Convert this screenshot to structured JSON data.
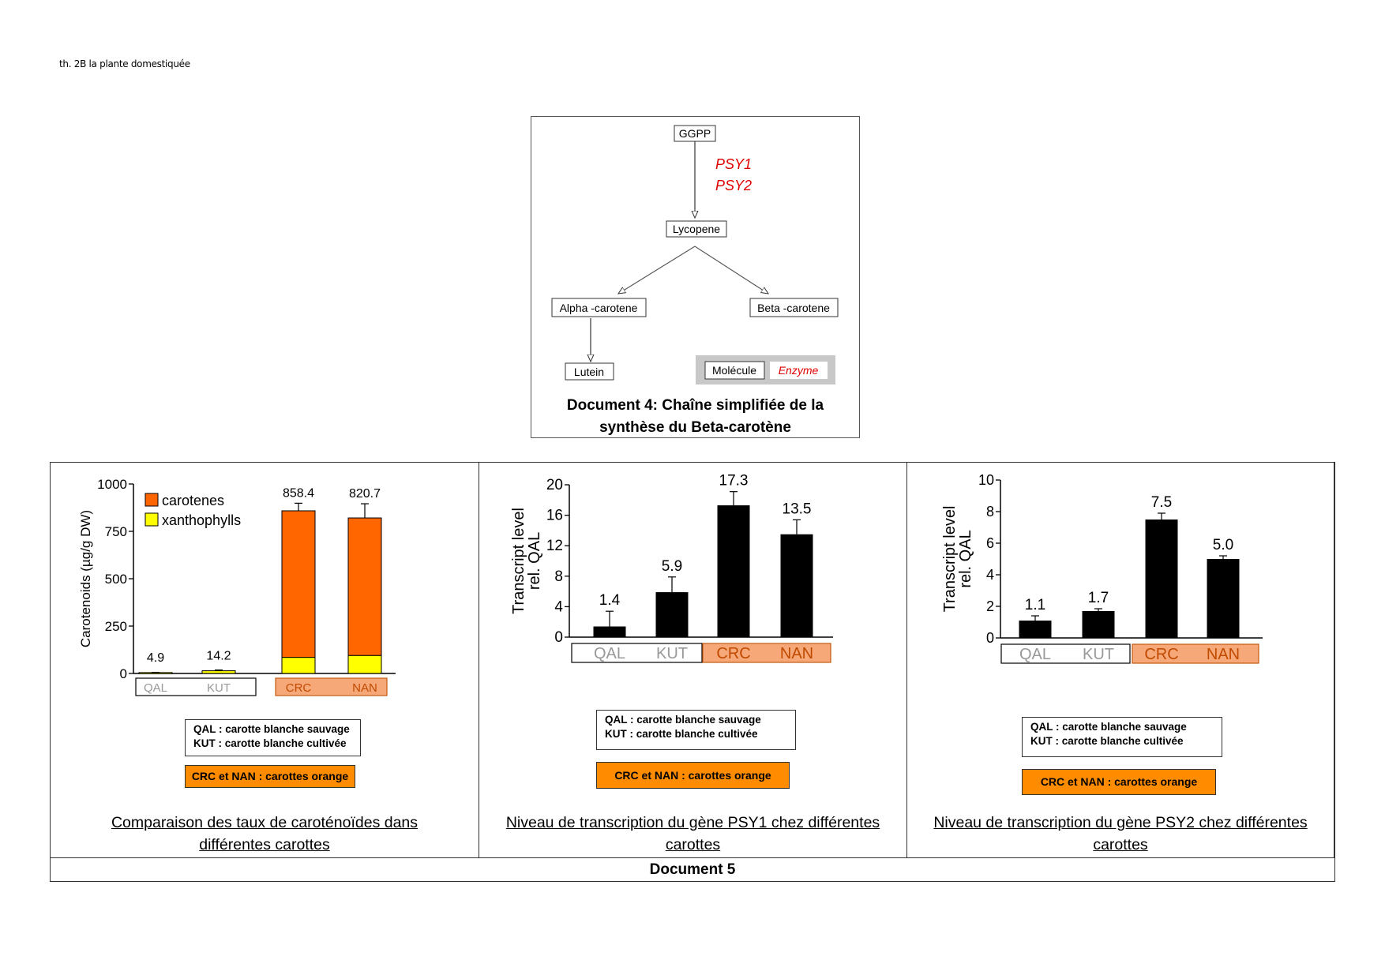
{
  "header": "th. 2B la plante domestiquée",
  "doc4": {
    "nodes": {
      "ggpp": "GGPP",
      "lycopene": "Lycopene",
      "alpha": "Alpha -carotene",
      "beta": "Beta -carotene",
      "lutein": "Lutein"
    },
    "enzymes": [
      "PSY1",
      "PSY2"
    ],
    "legend": {
      "molecule": "Molécule",
      "enzyme": "Enzyme"
    },
    "caption_line1": "Document 4: Chaîne simplifiée de la",
    "caption_line2": "synthèse du Beta-carotène",
    "colors": {
      "enzyme": "#e00000",
      "legend_bg": "#c8c8c8"
    }
  },
  "doc5": {
    "footer": "Document 5",
    "legend_white": {
      "qal": "QAL : carotte blanche sauvage",
      "kut": "KUT : carotte blanche cultivée"
    },
    "legend_orange": "CRC et NAN : carottes orange",
    "panels": [
      {
        "caption_line1": "Comparaison des taux de caroténoïdes dans",
        "caption_line2": "différentes carottes"
      },
      {
        "caption_line1": "Niveau de transcription du gène PSY1 chez différentes",
        "caption_line2": "carottes"
      },
      {
        "caption_line1": "Niveau de transcription du gène PSY2 chez différentes",
        "caption_line2": "carottes"
      }
    ]
  },
  "chart_data": [
    {
      "type": "bar",
      "stacked": true,
      "categories": [
        "QAL",
        "KUT",
        "CRC",
        "NAN"
      ],
      "series": [
        {
          "name": "xanthophylls",
          "values": [
            4.9,
            14.2,
            85,
            95
          ],
          "color": "#ffff00"
        },
        {
          "name": "carotenes",
          "values": [
            0,
            0,
            773.4,
            725.7
          ],
          "color": "#ff6600"
        }
      ],
      "totals": [
        4.9,
        14.2,
        858.4,
        820.7
      ],
      "total_labels": [
        "4.9",
        "14.2",
        "858.4",
        "820.7"
      ],
      "errors": [
        1,
        4,
        40,
        75
      ],
      "ylabel": "Carotenoids (µg/g DW)",
      "ylim": [
        0,
        1000
      ],
      "yticks": [
        0,
        250,
        500,
        750,
        1000
      ],
      "legend": [
        "carotenes",
        "xanthophylls"
      ]
    },
    {
      "type": "bar",
      "categories": [
        "QAL",
        "KUT",
        "CRC",
        "NAN"
      ],
      "values": [
        1.4,
        5.9,
        17.3,
        13.5
      ],
      "value_labels": [
        "1.4",
        "5.9",
        "17.3",
        "13.5"
      ],
      "errors": [
        2,
        2,
        1.8,
        1.9
      ],
      "ylabel": "Transcript level rel. QAL",
      "ylim": [
        0,
        20
      ],
      "yticks": [
        0,
        4,
        8,
        12,
        16,
        20
      ]
    },
    {
      "type": "bar",
      "categories": [
        "QAL",
        "KUT",
        "CRC",
        "NAN"
      ],
      "values": [
        1.1,
        1.7,
        7.5,
        5.0
      ],
      "value_labels": [
        "1.1",
        "1.7",
        "7.5",
        "5.0"
      ],
      "errors": [
        0.3,
        0.15,
        0.4,
        0.2
      ],
      "ylabel": "Transcript level rel. QAL",
      "ylim": [
        0,
        10
      ],
      "yticks": [
        0,
        2,
        4,
        6,
        8,
        10
      ]
    }
  ]
}
